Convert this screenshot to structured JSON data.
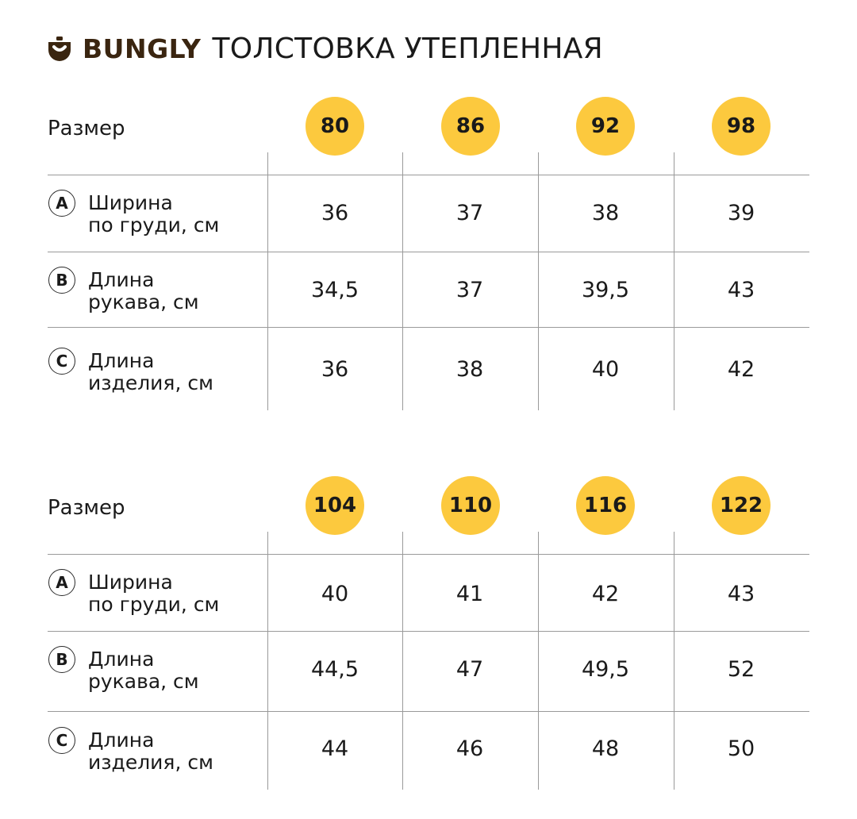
{
  "header": {
    "brand": "BUNGLY",
    "title": "ТОЛСТОВКА УТЕПЛЕННАЯ",
    "logo_icon": "smile-bag-icon",
    "brand_color": "#3a2510"
  },
  "accent_color": "#fcc93e",
  "size_label": "Размер",
  "tables": [
    {
      "sizes": [
        "80",
        "86",
        "92",
        "98"
      ],
      "rows": [
        {
          "letter": "A",
          "name_line1": "Ширина",
          "name_line2": "по груди, см",
          "values": [
            "36",
            "37",
            "38",
            "39"
          ]
        },
        {
          "letter": "B",
          "name_line1": "Длина",
          "name_line2": "рукава, см",
          "values": [
            "34,5",
            "37",
            "39,5",
            "43"
          ]
        },
        {
          "letter": "C",
          "name_line1": "Длина",
          "name_line2": "изделия, см",
          "values": [
            "36",
            "38",
            "40",
            "42"
          ]
        }
      ]
    },
    {
      "sizes": [
        "104",
        "110",
        "116",
        "122"
      ],
      "rows": [
        {
          "letter": "A",
          "name_line1": "Ширина",
          "name_line2": "по груди, см",
          "values": [
            "40",
            "41",
            "42",
            "43"
          ]
        },
        {
          "letter": "B",
          "name_line1": "Длина",
          "name_line2": "рукава, см",
          "values": [
            "44,5",
            "47",
            "49,5",
            "52"
          ]
        },
        {
          "letter": "C",
          "name_line1": "Длина",
          "name_line2": "изделия, см",
          "values": [
            "44",
            "46",
            "48",
            "50"
          ]
        }
      ]
    }
  ]
}
